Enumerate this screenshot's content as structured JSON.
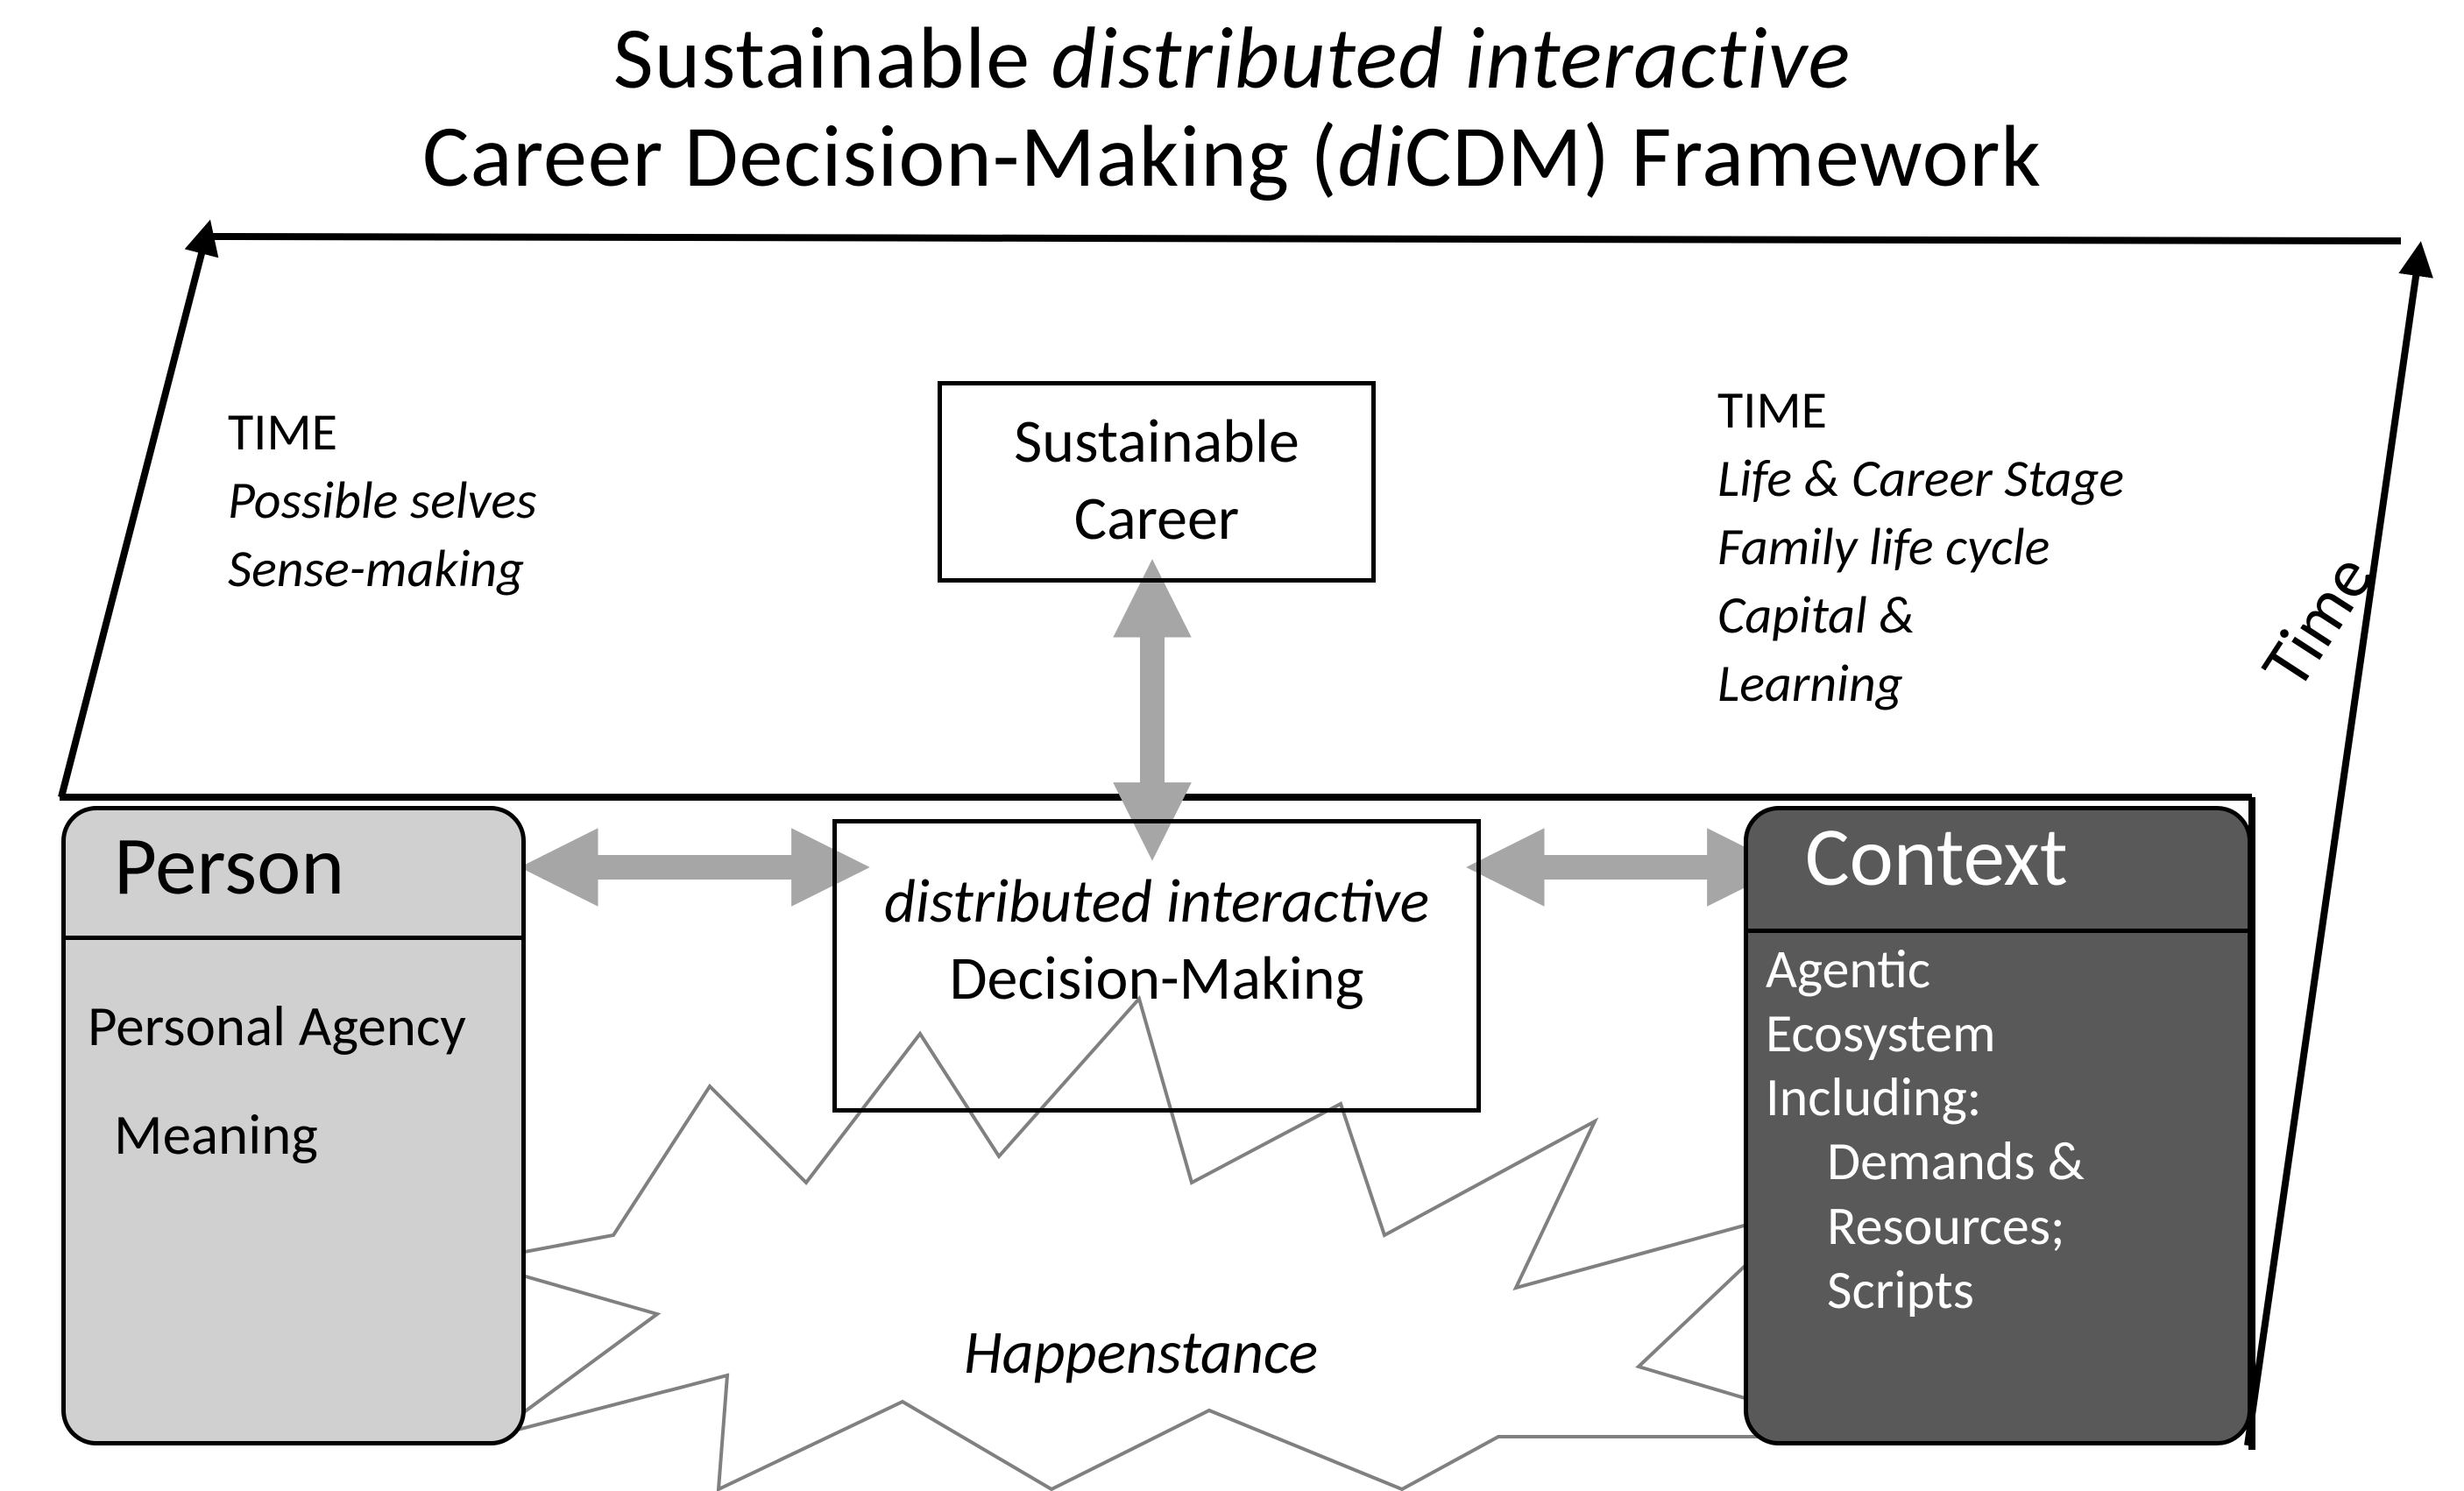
{
  "type": "diagram",
  "background_color": "#ffffff",
  "colors": {
    "text": "#000000",
    "text_light": "#ffffff",
    "person_fill": "#d0d0d0",
    "context_fill": "#595959",
    "box_border": "#000000",
    "arrow_gray": "#a6a6a6",
    "axis_black": "#000000",
    "starburst_stroke": "#808080"
  },
  "title": {
    "line1_pre": "Sustainable ",
    "line1_em": "distributed interactive",
    "line2_pre": "Career Decision-Making (",
    "line2_em": "di",
    "line2_post": "CDM) Framework",
    "fontsize": 100
  },
  "time_left": {
    "heading": "TIME",
    "line1": "Possible selves",
    "line2": "Sense-making",
    "fontsize": 60
  },
  "time_right": {
    "heading": "TIME",
    "line1": "Life & Career Stage",
    "line2": "Family life cycle",
    "line3": "Capital &",
    "line4": "Learning",
    "fontsize": 60
  },
  "sustainable_box": {
    "line1": "Sustainable",
    "line2": "Career"
  },
  "center_box": {
    "line1": "distributed interactive",
    "line2": "Decision-Making"
  },
  "person": {
    "title": "Person",
    "line1": "Personal Agency",
    "line2": "Meaning"
  },
  "context": {
    "title": "Context",
    "line1": "Agentic",
    "line2": "Ecosystem",
    "line3": "Including:",
    "line4": "Demands &",
    "line5": "Resources;",
    "line6": "Scripts"
  },
  "happenstance": "Happenstance",
  "time_axis_label": "Time",
  "axes": {
    "stroke_width": 8,
    "top_left_arrow": {
      "from": [
        70,
        910
      ],
      "to": [
        235,
        270
      ]
    },
    "right_arrow": {
      "from": [
        2565,
        1650
      ],
      "to": [
        2760,
        295
      ]
    },
    "top_plane_line": {
      "from": [
        235,
        270
      ],
      "to": [
        2740,
        275
      ]
    },
    "front_line": {
      "from": [
        68,
        910
      ],
      "to": [
        2570,
        910
      ]
    },
    "right_vertical": {
      "from": [
        2570,
        910
      ],
      "to": [
        2570,
        1655
      ]
    }
  },
  "gray_arrows": {
    "stroke_width": 28,
    "vertical": {
      "from": [
        1315,
        665
      ],
      "to": [
        1315,
        920
      ]
    },
    "left_horiz": {
      "from": [
        620,
        990
      ],
      "to": [
        930,
        990
      ]
    },
    "right_horiz": {
      "from": [
        1700,
        990
      ],
      "to": [
        1975,
        990
      ]
    }
  },
  "starburst": {
    "stroke_width": 4,
    "points": [
      [
        700,
        1410
      ],
      [
        810,
        1240
      ],
      [
        920,
        1350
      ],
      [
        1050,
        1180
      ],
      [
        1140,
        1320
      ],
      [
        1300,
        1140
      ],
      [
        1360,
        1350
      ],
      [
        1530,
        1260
      ],
      [
        1580,
        1410
      ],
      [
        1820,
        1280
      ],
      [
        1730,
        1470
      ],
      [
        2060,
        1380
      ],
      [
        1870,
        1560
      ],
      [
        2140,
        1640
      ],
      [
        1710,
        1640
      ],
      [
        1600,
        1700
      ],
      [
        1380,
        1610
      ],
      [
        1200,
        1700
      ],
      [
        1030,
        1600
      ],
      [
        820,
        1700
      ],
      [
        830,
        1570
      ],
      [
        560,
        1640
      ],
      [
        750,
        1500
      ],
      [
        540,
        1440
      ]
    ]
  }
}
